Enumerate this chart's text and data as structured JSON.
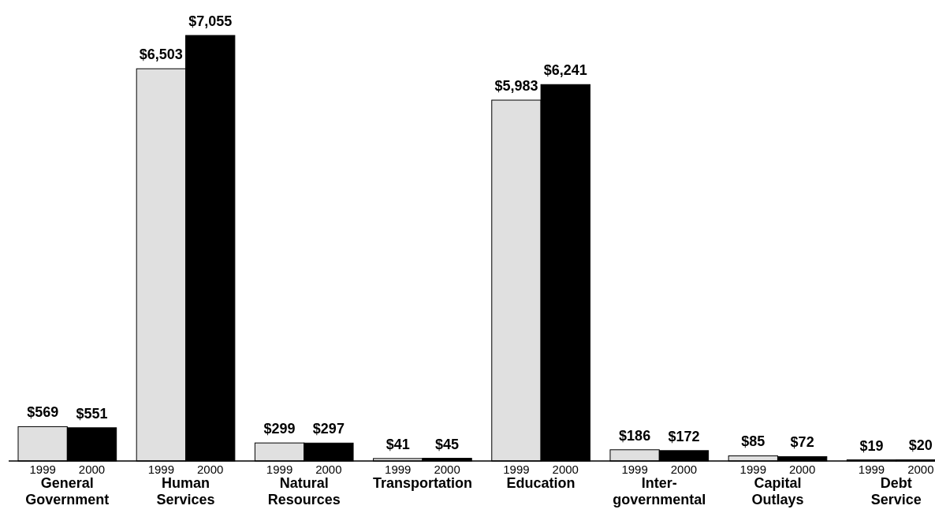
{
  "chart_data": {
    "type": "bar",
    "categories": [
      "General Government",
      "Human Services",
      "Natural Resources",
      "Transportation",
      "Education",
      "Inter-governmental",
      "Capital Outlays",
      "Debt Service"
    ],
    "series": [
      {
        "name": "1999",
        "color": "#e0e0e0",
        "values": [
          569,
          6503,
          299,
          41,
          5983,
          186,
          85,
          19
        ],
        "value_labels": [
          "$569",
          "$6,503",
          "$299",
          "$41",
          "$5,983",
          "$186",
          "$85",
          "$19"
        ]
      },
      {
        "name": "2000",
        "color": "#000000",
        "values": [
          551,
          7055,
          297,
          45,
          6241,
          172,
          72,
          20
        ],
        "value_labels": [
          "$551",
          "$7,055",
          "$297",
          "$45",
          "$6,241",
          "$172",
          "$72",
          "$20"
        ]
      }
    ]
  }
}
